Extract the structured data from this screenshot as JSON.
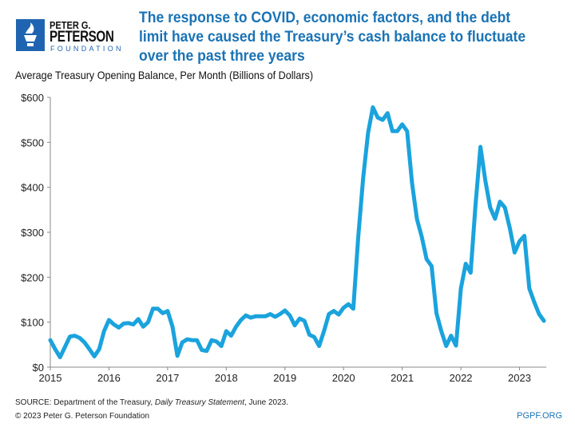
{
  "logo": {
    "line1": "PETER G.",
    "line2": "PETERSON",
    "line3": "FOUNDATION",
    "icon": "torch-icon"
  },
  "headline": "The response to COVID, economic factors, and the debt limit have caused the Treasury’s cash balance to fluctuate over the past three years",
  "footer": {
    "source_prefix": "SOURCE: Department of the Treasury, ",
    "source_italic": "Daily Treasury Statement",
    "source_suffix": ", June 2023.",
    "copyright": "© 2023 Peter G. Peterson Foundation",
    "url": "PGPF.ORG"
  },
  "chart_data": {
    "type": "line",
    "title": "Average Treasury Opening Balance, Per Month (Billions of Dollars)",
    "x_start": "2015-01",
    "x_frequency": "monthly",
    "xticks": [
      "2015",
      "2016",
      "2017",
      "2018",
      "2019",
      "2020",
      "2021",
      "2022",
      "2023"
    ],
    "yticks": [
      "$0",
      "$100",
      "$200",
      "$300",
      "$400",
      "$500",
      "$600"
    ],
    "ylim": [
      0,
      600
    ],
    "grid": false,
    "color": "#1aa3dd",
    "values": [
      60,
      40,
      22,
      45,
      68,
      70,
      65,
      55,
      40,
      24,
      40,
      80,
      105,
      95,
      88,
      97,
      98,
      95,
      107,
      90,
      100,
      130,
      130,
      120,
      125,
      90,
      25,
      55,
      62,
      60,
      60,
      38,
      36,
      60,
      57,
      47,
      80,
      70,
      90,
      105,
      115,
      110,
      113,
      113,
      113,
      118,
      112,
      118,
      126,
      115,
      93,
      108,
      103,
      72,
      67,
      47,
      80,
      118,
      125,
      117,
      132,
      140,
      130,
      290,
      420,
      520,
      578,
      555,
      550,
      565,
      525,
      525,
      540,
      525,
      410,
      330,
      290,
      240,
      225,
      120,
      80,
      47,
      70,
      48,
      175,
      230,
      210,
      360,
      490,
      415,
      355,
      330,
      368,
      355,
      310,
      255,
      280,
      292,
      175,
      145,
      118,
      103
    ]
  }
}
